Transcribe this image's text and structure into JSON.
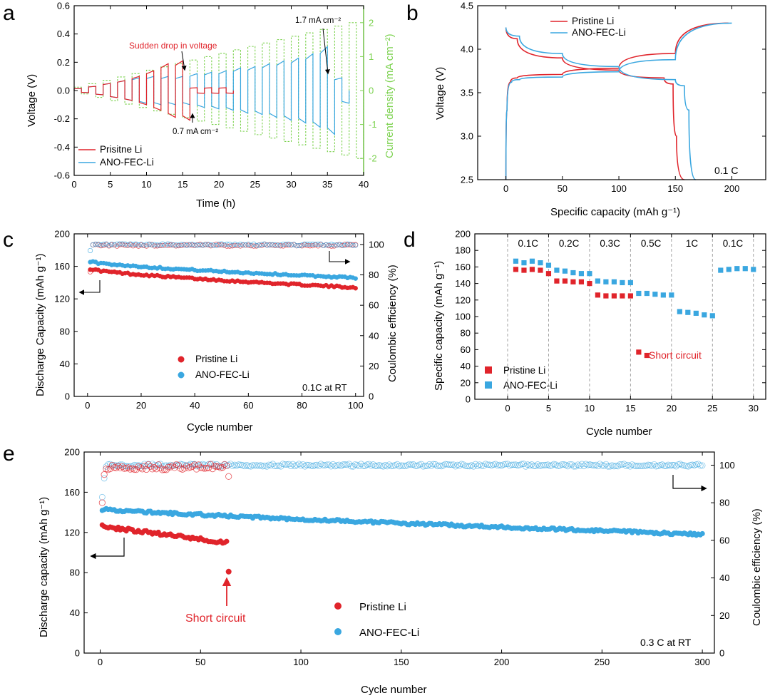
{
  "colors": {
    "pristine": "#e0242b",
    "ano": "#3aa7e0",
    "green": "#7cd24f",
    "red_text": "#e0242b"
  },
  "chart_data": [
    {
      "panel": "a",
      "type": "line",
      "xlabel": "Time (h)",
      "ylabel": "Voltage (V)",
      "y2label": "Current density (mA cm⁻²)",
      "xlim": [
        0,
        40
      ],
      "ylim": [
        -0.6,
        0.6
      ],
      "y2lim": [
        -2.5,
        2.5
      ],
      "xticks": [
        0,
        5,
        10,
        15,
        20,
        25,
        30,
        35,
        40
      ],
      "yticks": [
        -0.6,
        -0.4,
        -0.2,
        0.0,
        0.2,
        0.4,
        0.6
      ],
      "y2ticks": [
        -2,
        -1,
        0,
        1,
        2
      ],
      "series": [
        {
          "name": "Prisitne Li",
          "color": "#e0242b",
          "cycle_period_h": 2,
          "peak_voltage": [
            0.015,
            0.03,
            0.05,
            0.07,
            0.1,
            0.14,
            0.19,
            0.21,
            0.02,
            0.02,
            0.02
          ]
        },
        {
          "name": "ANO-FEC-Li",
          "color": "#3aa7e0",
          "cycle_period_h": 2,
          "peak_voltage": [
            0.015,
            0.03,
            0.05,
            0.07,
            0.09,
            0.1,
            0.1,
            0.1,
            0.12,
            0.13,
            0.14,
            0.16,
            0.17,
            0.19,
            0.21,
            0.23,
            0.26,
            0.31,
            0.09
          ]
        },
        {
          "name": "Current density",
          "color": "#7cd24f",
          "cycle_period_h": 2,
          "current_density": [
            0.1,
            0.2,
            0.3,
            0.4,
            0.5,
            0.6,
            0.7,
            0.8,
            0.9,
            1.0,
            1.1,
            1.2,
            1.3,
            1.4,
            1.5,
            1.6,
            1.7,
            1.8,
            1.9,
            2.0
          ]
        }
      ],
      "annotations": {
        "drop": "Sudden drop in voltage",
        "low": "0.7 mA cm⁻²",
        "high": "1.7 mA cm⁻²"
      }
    },
    {
      "panel": "b",
      "type": "line",
      "xlabel": "Specific capacity (mAh g⁻¹)",
      "ylabel": "Voltage (V)",
      "xlim": [
        -25,
        230
      ],
      "ylim": [
        2.5,
        4.5
      ],
      "xticks": [
        0,
        50,
        100,
        150,
        200
      ],
      "yticks": [
        2.5,
        3.0,
        3.5,
        4.0,
        4.5
      ],
      "series": [
        {
          "name": "Pristine Li",
          "color": "#e0242b",
          "charge": [
            [
              0,
              2.5
            ],
            [
              1,
              3.3
            ],
            [
              4,
              3.62
            ],
            [
              10,
              3.67
            ],
            [
              50,
              3.71
            ],
            [
              100,
              3.78
            ],
            [
              150,
              3.95
            ],
            [
              197,
              4.3
            ]
          ],
          "discharge": [
            [
              0,
              4.25
            ],
            [
              10,
              4.12
            ],
            [
              50,
              3.9
            ],
            [
              100,
              3.76
            ],
            [
              140,
              3.67
            ],
            [
              148,
              3.6
            ],
            [
              151,
              3.0
            ],
            [
              158,
              2.5
            ]
          ]
        },
        {
          "name": "ANO-FEC-Li",
          "color": "#3aa7e0",
          "charge": [
            [
              0,
              2.5
            ],
            [
              1,
              3.3
            ],
            [
              5,
              3.62
            ],
            [
              12,
              3.65
            ],
            [
              50,
              3.68
            ],
            [
              100,
              3.74
            ],
            [
              150,
              3.88
            ],
            [
              200,
              4.3
            ]
          ],
          "discharge": [
            [
              0,
              4.25
            ],
            [
              12,
              4.15
            ],
            [
              50,
              3.95
            ],
            [
              100,
              3.8
            ],
            [
              150,
              3.65
            ],
            [
              158,
              3.58
            ],
            [
              162,
              3.3
            ],
            [
              168,
              2.5
            ]
          ]
        }
      ],
      "annotation": "0.1 C"
    },
    {
      "panel": "c",
      "type": "scatter",
      "xlabel": "Cycle number",
      "ylabel": "Discharge Capacity (mAh g⁻¹)",
      "y2label": "Coulombic efficiency (%)",
      "xlim": [
        -5,
        103
      ],
      "ylim": [
        0,
        200
      ],
      "y2lim": [
        0,
        107
      ],
      "xticks": [
        0,
        20,
        40,
        60,
        80,
        100
      ],
      "yticks": [
        0,
        40,
        80,
        120,
        160,
        200
      ],
      "y2ticks": [
        0,
        20,
        40,
        60,
        80,
        100
      ],
      "series": [
        {
          "name": "Pristine Li",
          "color": "#e0242b",
          "capacity_start": 157,
          "capacity_end": 134,
          "ce_start": 82,
          "ce_plateau": 99.5
        },
        {
          "name": "ANO-FEC-Li",
          "color": "#3aa7e0",
          "capacity_start": 166,
          "capacity_end": 146,
          "ce_start": 96,
          "ce_plateau": 99.8
        }
      ],
      "annotation": "0.1C at RT"
    },
    {
      "panel": "d",
      "type": "scatter",
      "xlabel": "Cycle number",
      "ylabel": "Specific capacity (mAh g⁻¹)",
      "xlim": [
        -4,
        31.5
      ],
      "ylim": [
        0,
        200
      ],
      "xticks": [
        0,
        5,
        10,
        15,
        20,
        25,
        30
      ],
      "yticks": [
        0,
        20,
        40,
        60,
        80,
        100,
        120,
        140,
        160,
        180,
        200
      ],
      "rate_labels": [
        "0.1C",
        "0.2C",
        "0.3C",
        "0.5C",
        "1C",
        "0.1C"
      ],
      "rate_boundaries": [
        5,
        10,
        15,
        20,
        25,
        30
      ],
      "series": [
        {
          "name": "Pristine Li",
          "color": "#e0242b",
          "points": [
            [
              1,
              157
            ],
            [
              2,
              156
            ],
            [
              3,
              157
            ],
            [
              4,
              156
            ],
            [
              5,
              152
            ],
            [
              6,
              143
            ],
            [
              7,
              143
            ],
            [
              8,
              142
            ],
            [
              9,
              142
            ],
            [
              10,
              140
            ],
            [
              11,
              126
            ],
            [
              12,
              125
            ],
            [
              13,
              125
            ],
            [
              14,
              125
            ],
            [
              15,
              125
            ],
            [
              16,
              57
            ],
            [
              17,
              53
            ]
          ]
        },
        {
          "name": "ANO-FEC-Li",
          "color": "#3aa7e0",
          "points": [
            [
              1,
              167
            ],
            [
              2,
              165
            ],
            [
              3,
              167
            ],
            [
              4,
              165
            ],
            [
              5,
              162
            ],
            [
              6,
              156
            ],
            [
              7,
              155
            ],
            [
              8,
              153
            ],
            [
              9,
              152
            ],
            [
              10,
              152
            ],
            [
              11,
              143
            ],
            [
              12,
              142
            ],
            [
              13,
              142
            ],
            [
              14,
              141
            ],
            [
              15,
              141
            ],
            [
              16,
              128
            ],
            [
              17,
              128
            ],
            [
              18,
              127
            ],
            [
              19,
              126
            ],
            [
              20,
              126
            ],
            [
              21,
              106
            ],
            [
              22,
              105
            ],
            [
              23,
              104
            ],
            [
              24,
              102
            ],
            [
              25,
              101
            ],
            [
              26,
              156
            ],
            [
              27,
              157
            ],
            [
              28,
              158
            ],
            [
              29,
              158
            ],
            [
              30,
              157
            ]
          ]
        }
      ],
      "annotation": "Short circuit"
    },
    {
      "panel": "e",
      "type": "scatter",
      "xlabel": "Cycle number",
      "ylabel": "Discharge capacity (mAh g⁻¹)",
      "y2label": "Coulombic efficiency (%)",
      "xlim": [
        -8,
        306
      ],
      "ylim": [
        0,
        200
      ],
      "y2lim": [
        0,
        107
      ],
      "xticks": [
        0,
        50,
        100,
        150,
        200,
        250,
        300
      ],
      "yticks": [
        0,
        40,
        80,
        120,
        160,
        200
      ],
      "y2ticks": [
        0,
        20,
        40,
        60,
        80,
        100
      ],
      "series": [
        {
          "name": "Pristine Li",
          "color": "#e0242b",
          "capacity_start": 126,
          "capacity_end": 110,
          "short_circuit_cycle": 64,
          "short_circuit_capacity": 81,
          "ce_plateau": 99
        },
        {
          "name": "ANO-FEC-Li",
          "color": "#3aa7e0",
          "capacity_start": 143,
          "capacity_end": 118,
          "ce_start": 83,
          "ce_plateau": 100
        }
      ],
      "annotations": {
        "short": "Short circuit",
        "condition": "0.3 C at RT"
      }
    }
  ]
}
